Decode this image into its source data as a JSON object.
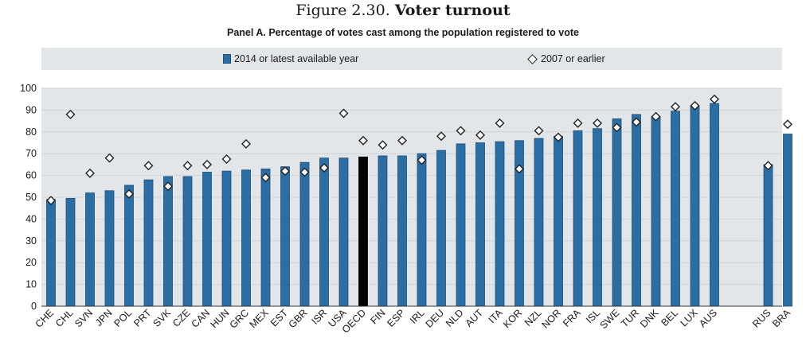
{
  "figure": {
    "prefix": "Figure 2.30.",
    "title": "Voter turnout"
  },
  "panel_title": "Panel A. Percentage of votes cast among the population registered to vote",
  "legend": {
    "series1": "2014 or latest available year",
    "series2": "2007 or earlier"
  },
  "colors": {
    "bar": "#2b6ea4",
    "bar_edge": "#1f4e79",
    "highlight": "#000000",
    "grid": "#cfd4d8",
    "plot_bg": "#e3e6e8"
  },
  "chart_data": {
    "type": "bar",
    "categories": [
      "CHE",
      "CHL",
      "SVN",
      "JPN",
      "POL",
      "PRT",
      "SVK",
      "CZE",
      "CAN",
      "HUN",
      "GRC",
      "MEX",
      "EST",
      "GBR",
      "ISR",
      "USA",
      "OECD",
      "FIN",
      "ESP",
      "IRL",
      "DEU",
      "NLD",
      "AUT",
      "ITA",
      "KOR",
      "NZL",
      "NOR",
      "FRA",
      "ISL",
      "SWE",
      "TUR",
      "DNK",
      "BEL",
      "LUX",
      "AUS",
      "RUS",
      "BRA"
    ],
    "series": [
      {
        "name": "2014 or latest available year",
        "values": [
          49,
          49.5,
          52,
          53,
          55.5,
          58,
          59.5,
          59.5,
          61.5,
          62,
          62.5,
          63,
          64,
          66,
          68,
          68,
          68.5,
          69,
          69,
          70,
          71.5,
          74.5,
          75,
          75.5,
          76,
          77,
          78,
          80.5,
          81.5,
          86,
          88,
          87,
          89.5,
          92,
          93,
          65,
          79
        ]
      },
      {
        "name": "2007 or earlier",
        "values": [
          48.5,
          88,
          61,
          68,
          51.5,
          64.5,
          55,
          64.5,
          65,
          67.5,
          74.5,
          59,
          62,
          61.5,
          63.5,
          88.5,
          76,
          74,
          76,
          67,
          78,
          80.5,
          78.5,
          84,
          63,
          80.5,
          77.5,
          84,
          84,
          82,
          84.5,
          87,
          91.5,
          92,
          95,
          64.5,
          83.5
        ]
      }
    ],
    "highlight": "OECD",
    "ylim": [
      0,
      100
    ],
    "yticks": [
      0,
      10,
      20,
      30,
      40,
      50,
      60,
      70,
      80,
      90,
      100
    ],
    "grid": true,
    "legend_position": "top"
  }
}
